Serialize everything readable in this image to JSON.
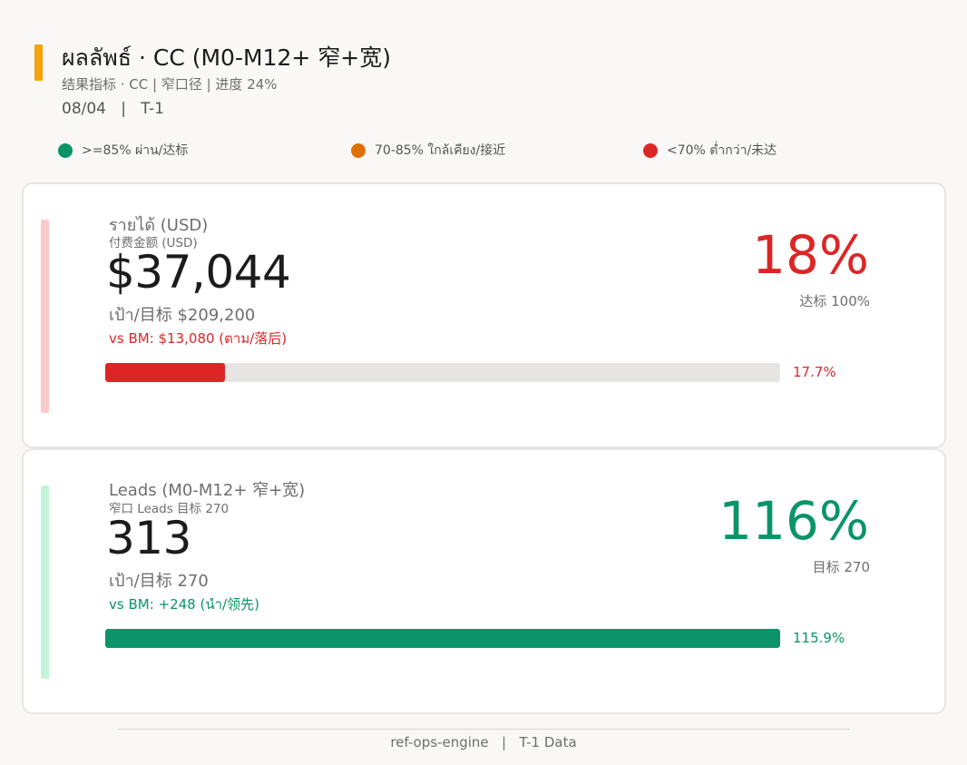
{
  "header": {
    "title": "ผลลัพธ์ · CC (M0-M12+ 窄+宽)",
    "subtitle": "结果指标 · CC | 窄口径 | 进度 24%",
    "date": "08/04",
    "separator": "|",
    "period": "T-1",
    "accent_color": "#f5a20c"
  },
  "legend": [
    {
      "label": ">=85% ผ่าน/达标",
      "color": "#0a9467"
    },
    {
      "label": "70-85% ใกล้เคียง/接近",
      "color": "#df7006"
    },
    {
      "label": "<70% ต่ำกว่า/未达",
      "color": "#dc2626"
    }
  ],
  "cards": [
    {
      "label": "รายได้ (USD)",
      "sublabel": "付费金额 (USD)",
      "value": "$37,044",
      "target": "เป้า/目标 $209,200",
      "bm": "vs BM: $13,080 (ตาม/落后)",
      "pct": "18%",
      "pct_note": "达标 100%",
      "bar_pct": "17.7%",
      "progress": 0.177,
      "status_color": "#dc2626",
      "side_color": "#fdcaca"
    },
    {
      "label": "Leads (M0-M12+ 窄+宽)",
      "sublabel": "窄口 Leads 目标 270",
      "value": "313",
      "target": "เป้า/目标 270",
      "bm": "vs BM: +248 (นำ/领先)",
      "pct": "116%",
      "pct_note": "目标 270",
      "bar_pct": "115.9%",
      "progress": 1.159,
      "status_color": "#0a9467",
      "side_color": "#c3f4d7"
    }
  ],
  "footer": {
    "source": "ref-ops-engine",
    "separator": "|",
    "note": "T-1 Data"
  }
}
